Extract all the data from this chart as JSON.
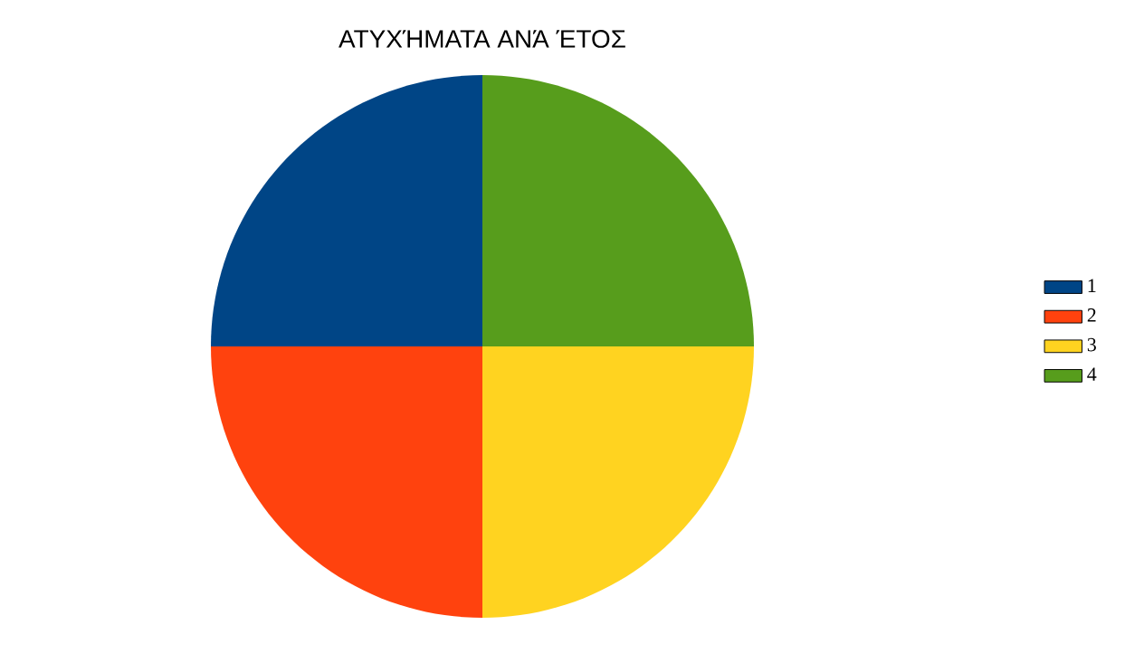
{
  "chart_data": {
    "type": "pie",
    "title": "ΑΤΥΧΉΜΑΤΑ ΑΝΆ ΈΤΟΣ",
    "categories": [
      "1",
      "2",
      "3",
      "4"
    ],
    "values": [
      25,
      25,
      25,
      25
    ],
    "colors": [
      "#004586",
      "#ff420e",
      "#ffd320",
      "#579d1c"
    ],
    "legend": "right"
  }
}
